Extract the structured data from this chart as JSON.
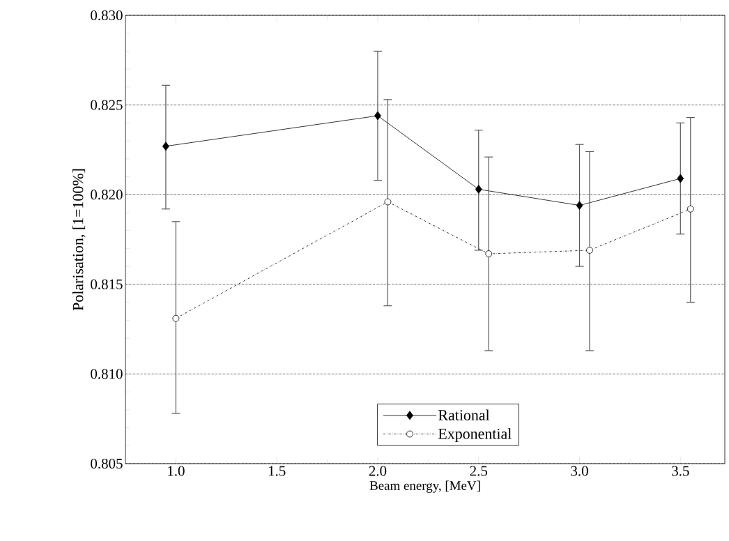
{
  "chart_data": {
    "type": "line",
    "xlabel": "Beam energy, [MeV]",
    "ylabel": "Polarisation, [1=100%]",
    "xlim": [
      0.75,
      3.72
    ],
    "ylim": [
      0.805,
      0.83
    ],
    "xticks": [
      {
        "value": 1,
        "label": "1.0"
      },
      {
        "value": 1.5,
        "label": "1.5"
      },
      {
        "value": 2,
        "label": "2.0"
      },
      {
        "value": 2.5,
        "label": "2.5"
      },
      {
        "value": 3,
        "label": "3.0"
      },
      {
        "value": 3.5,
        "label": "3.5"
      }
    ],
    "yticks": [
      0.805,
      {
        "value": 0.81,
        "label": "0.810"
      },
      0.815,
      {
        "value": 0.82,
        "label": "0.820"
      },
      0.825,
      {
        "value": 0.83,
        "label": "0.830"
      }
    ],
    "grid": "y",
    "legend": "bottom right",
    "series": [
      {
        "name": "Rational",
        "color": "#000000",
        "marker": "diamond",
        "line_style": "solid",
        "x": [
          0.95,
          2.0,
          2.5,
          3.0,
          3.5
        ],
        "values": [
          0.8227,
          0.8244,
          0.8203,
          0.8194,
          0.8209
        ],
        "errors": [
          [
            0.8192,
            0.8261
          ],
          [
            0.8208,
            0.828
          ],
          [
            0.8169,
            0.8236
          ],
          [
            0.816,
            0.8228
          ],
          [
            0.8178,
            0.824
          ]
        ]
      },
      {
        "name": "Exponential",
        "color": "#000000",
        "marker": "circle",
        "line_style": "dashed",
        "x": [
          1.0,
          2.05,
          2.55,
          3.05,
          3.55
        ],
        "values": [
          0.8131,
          0.8196,
          0.8167,
          0.8169,
          0.8192
        ],
        "errors": [
          [
            0.8078,
            0.8185
          ],
          [
            0.8138,
            0.8253
          ],
          [
            0.8113,
            0.8221
          ],
          [
            0.8113,
            0.8224
          ],
          [
            0.814,
            0.8243
          ]
        ]
      }
    ]
  }
}
